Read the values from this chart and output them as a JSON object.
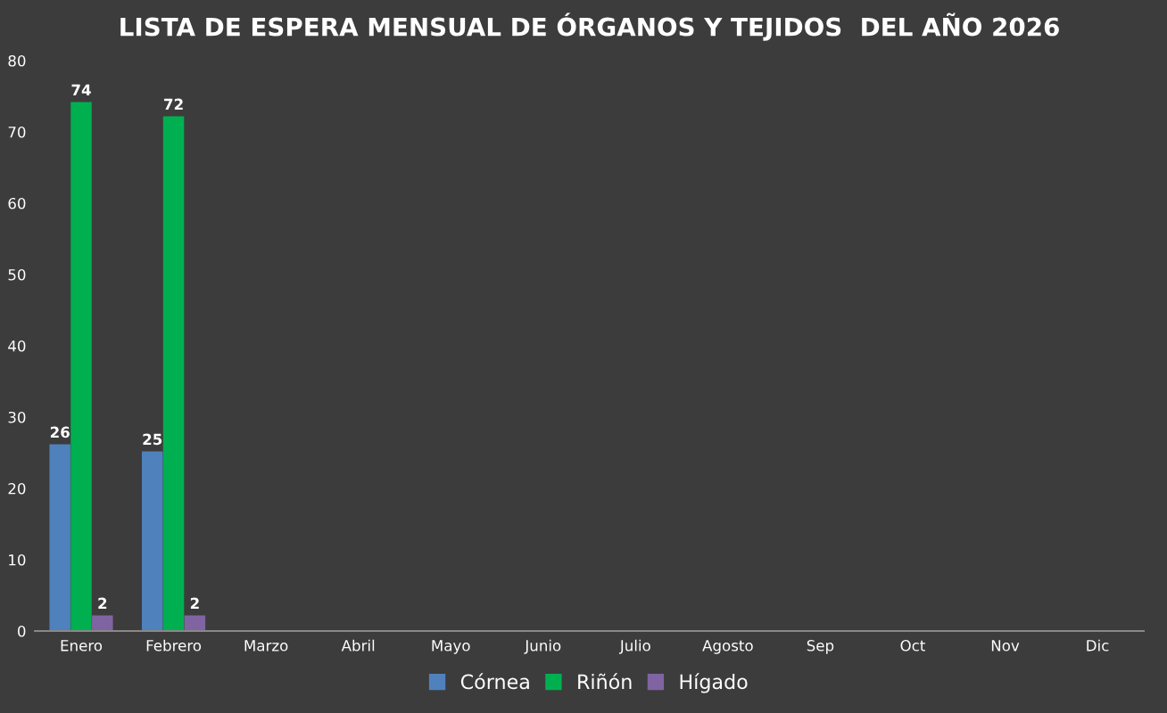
{
  "chart_data": {
    "type": "bar",
    "title": "LISTA DE ESPERA MENSUAL DE ÓRGANOS Y TEJIDOS  DEL AÑO 2026",
    "categories": [
      "Enero",
      "Febrero",
      "Marzo",
      "Abril",
      "Mayo",
      "Junio",
      "Julio",
      "Agosto",
      "Sep",
      "Oct",
      "Nov",
      "Dic"
    ],
    "series": [
      {
        "name": "Córnea",
        "color": "#4f81bd",
        "values": [
          26,
          25,
          null,
          null,
          null,
          null,
          null,
          null,
          null,
          null,
          null,
          null
        ]
      },
      {
        "name": "Riñón",
        "color": "#00b050",
        "values": [
          74,
          72,
          null,
          null,
          null,
          null,
          null,
          null,
          null,
          null,
          null,
          null
        ]
      },
      {
        "name": "Hígado",
        "color": "#8064a2",
        "values": [
          2,
          2,
          null,
          null,
          null,
          null,
          null,
          null,
          null,
          null,
          null,
          null
        ]
      }
    ],
    "ylim": [
      0,
      80
    ],
    "yticks": [
      0,
      10,
      20,
      30,
      40,
      50,
      60,
      70,
      80
    ],
    "grid": false,
    "legend": "bottom",
    "data_labels": true
  }
}
